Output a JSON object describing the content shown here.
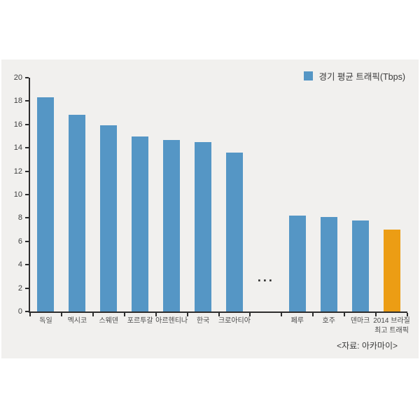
{
  "chart_data": {
    "type": "bar",
    "title": "",
    "legend": "경기 평균 트래픽(Tbps)",
    "source": "<자료: 아카마이>",
    "categories": [
      "독일",
      "멕시코",
      "스웨덴",
      "포르투갈",
      "아르헨티나",
      "한국",
      "크로아티아",
      "",
      "페루",
      "호주",
      "덴마크",
      "2014 브라질\n최고 트래픽"
    ],
    "values": [
      18.3,
      16.8,
      15.9,
      15.0,
      14.7,
      14.5,
      13.6,
      null,
      8.2,
      8.1,
      7.8,
      7.0
    ],
    "gap_index": 7,
    "gap_marker": "...",
    "ylim": [
      0,
      20
    ],
    "ytick_step": 2,
    "xlabel": "",
    "ylabel": "",
    "grid": false,
    "legend_position": "top-right",
    "bar_color": "#5596C5",
    "highlight_color": "#EC9D14",
    "highlight_index": 11,
    "panel_bg": "#F1F0EE"
  }
}
